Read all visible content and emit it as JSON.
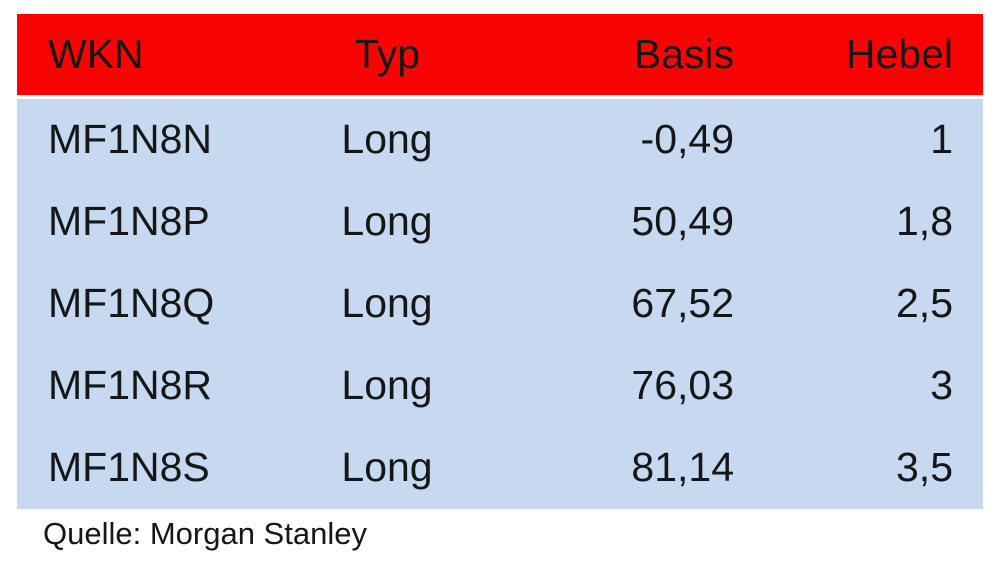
{
  "table": {
    "headers": [
      "WKN",
      "Typ",
      "Basis",
      "Hebel"
    ],
    "rows": [
      [
        "MF1N8N",
        "Long",
        "-0,49",
        "1"
      ],
      [
        "MF1N8P",
        "Long",
        "50,49",
        "1,8"
      ],
      [
        "MF1N8Q",
        "Long",
        "67,52",
        "2,5"
      ],
      [
        "MF1N8R",
        "Long",
        "76,03",
        "3"
      ],
      [
        "MF1N8S",
        "Long",
        "81,14",
        "3,5"
      ]
    ]
  },
  "footer": {
    "source_label": "Quelle: Morgan Stanley"
  },
  "colors": {
    "header_bg": "#fb0202",
    "body_bg": "#c6d9f0",
    "text": "#161616",
    "page_bg": "#ffffff"
  },
  "chart_data": {
    "type": "table",
    "columns": [
      "WKN",
      "Typ",
      "Basis",
      "Hebel"
    ],
    "rows": [
      [
        "MF1N8N",
        "Long",
        -0.49,
        1.0
      ],
      [
        "MF1N8P",
        "Long",
        50.49,
        1.8
      ],
      [
        "MF1N8Q",
        "Long",
        67.52,
        2.5
      ],
      [
        "MF1N8R",
        "Long",
        76.03,
        3.0
      ],
      [
        "MF1N8S",
        "Long",
        81.14,
        3.5
      ]
    ],
    "decimal_separator": ",",
    "source": "Quelle: Morgan Stanley",
    "layout": {
      "header_background": "#fb0202",
      "body_background": "#c6d9f0",
      "column_alignment": [
        "left",
        "center",
        "right",
        "right"
      ]
    }
  }
}
